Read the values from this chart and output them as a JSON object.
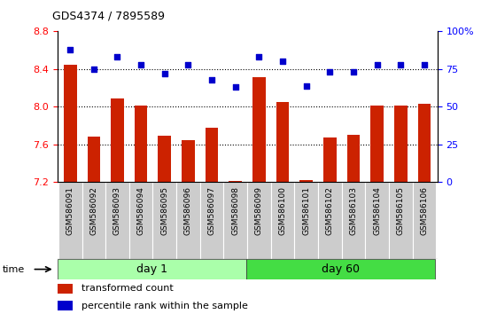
{
  "title": "GDS4374 / 7895589",
  "samples": [
    "GSM586091",
    "GSM586092",
    "GSM586093",
    "GSM586094",
    "GSM586095",
    "GSM586096",
    "GSM586097",
    "GSM586098",
    "GSM586099",
    "GSM586100",
    "GSM586101",
    "GSM586102",
    "GSM586103",
    "GSM586104",
    "GSM586105",
    "GSM586106"
  ],
  "red_values": [
    8.45,
    7.68,
    8.09,
    8.01,
    7.69,
    7.65,
    7.78,
    7.21,
    8.31,
    8.05,
    7.22,
    7.67,
    7.7,
    8.01,
    8.01,
    8.03
  ],
  "blue_values": [
    88,
    75,
    83,
    78,
    72,
    78,
    68,
    63,
    83,
    80,
    64,
    73,
    73,
    78,
    78,
    78
  ],
  "ylim_left": [
    7.2,
    8.8
  ],
  "ylim_right": [
    0,
    100
  ],
  "yticks_left": [
    7.2,
    7.6,
    8.0,
    8.4,
    8.8
  ],
  "yticks_right": [
    0,
    25,
    50,
    75,
    100
  ],
  "ytick_labels_right": [
    "0",
    "25",
    "50",
    "75",
    "100%"
  ],
  "grid_lines": [
    8.4,
    8.0,
    7.6
  ],
  "bar_color": "#cc2200",
  "dot_color": "#0000cc",
  "day1_color": "#aaffaa",
  "day60_color": "#44dd44",
  "cell_color": "#cccccc",
  "bar_bottom": 7.2,
  "n_day1": 8,
  "n_day60": 8
}
